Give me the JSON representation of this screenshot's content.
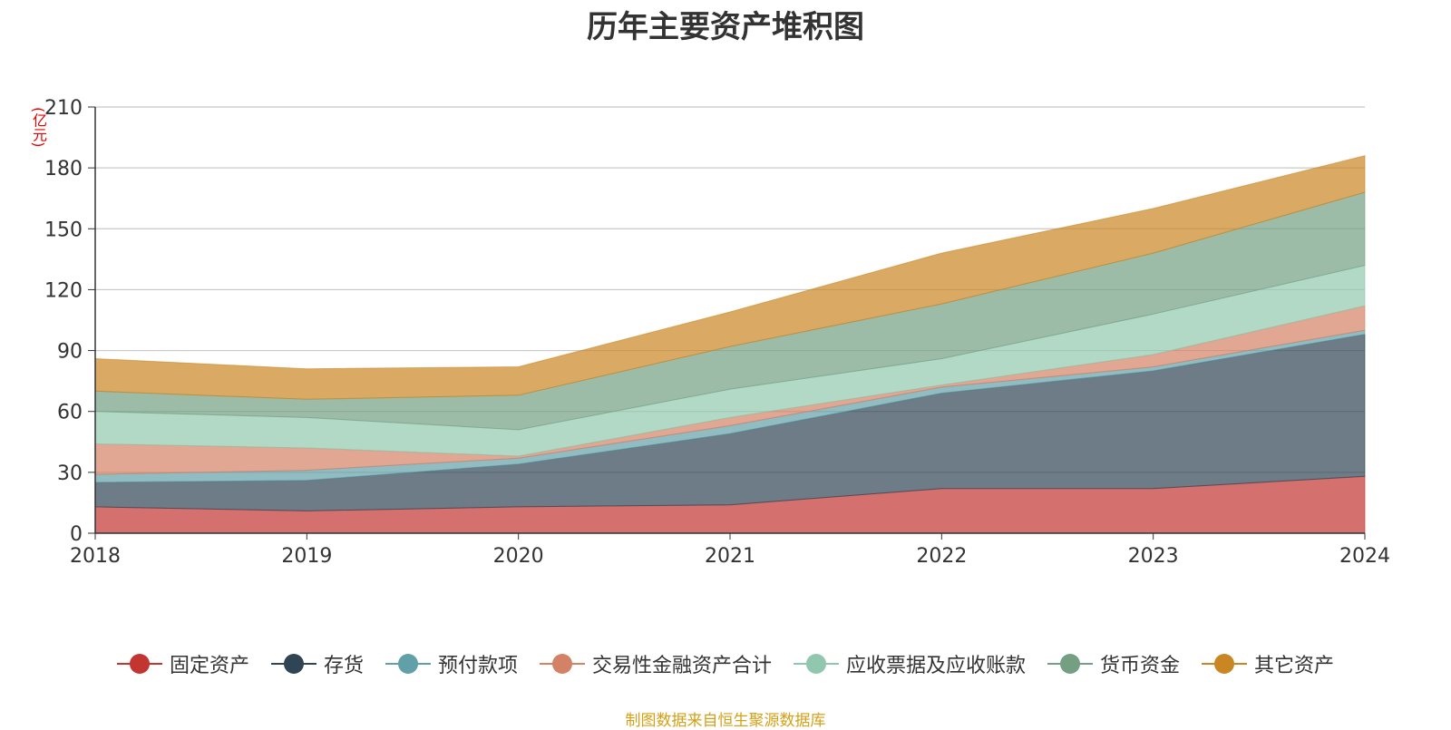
{
  "chart_data": {
    "type": "area",
    "stacked": true,
    "title": "历年主要资产堆积图",
    "unit_label": "(亿元)",
    "x": [
      "2018",
      "2019",
      "2020",
      "2021",
      "2022",
      "2023",
      "2024"
    ],
    "ylim": [
      0,
      210
    ],
    "yticks": [
      0,
      30,
      60,
      90,
      120,
      150,
      180,
      210
    ],
    "grid": true,
    "legend_position": "bottom",
    "series": [
      {
        "name": "固定资产",
        "color": "#c23531",
        "values": [
          13,
          11,
          13,
          14,
          22,
          22,
          28
        ]
      },
      {
        "name": "存货",
        "color": "#2f4554",
        "values": [
          12,
          15,
          21,
          35,
          47,
          58,
          70
        ]
      },
      {
        "name": "预付款项",
        "color": "#61a0a8",
        "values": [
          4,
          5,
          3,
          4,
          3,
          2,
          2
        ]
      },
      {
        "name": "交易性金融资产合计",
        "color": "#d48265",
        "values": [
          15,
          11,
          1,
          4,
          1,
          6,
          12
        ]
      },
      {
        "name": "应收票据及应收账款",
        "color": "#91c7ae",
        "values": [
          16,
          15,
          13,
          14,
          13,
          20,
          20
        ]
      },
      {
        "name": "货币资金",
        "color": "#749f83",
        "values": [
          10,
          9,
          17,
          21,
          27,
          30,
          36
        ]
      },
      {
        "name": "其它资产",
        "color": "#ca8622",
        "values": [
          16,
          15,
          14,
          17,
          25,
          22,
          18
        ]
      }
    ]
  },
  "source_text": "制图数据来自恒生聚源数据库"
}
